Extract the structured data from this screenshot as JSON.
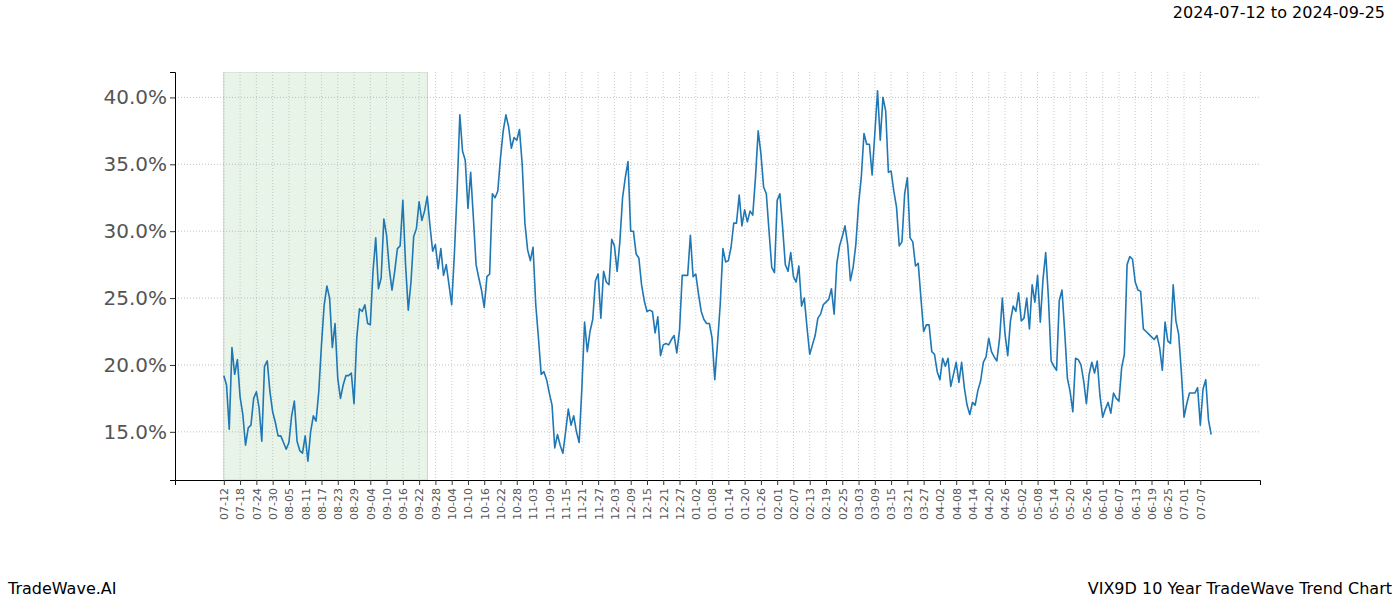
{
  "chart_data": {
    "type": "line",
    "title": "VIX9D 10 Year TradeWave Trend Chart",
    "subtitle": "2024-07-12 to 2024-09-25",
    "annotations": [
      "TradeWave.AI"
    ],
    "color": "#1f77b4",
    "grid": true,
    "highlight": [
      0,
      75
    ],
    "ylim": [
      11.4,
      41.9
    ],
    "yticks": [
      {
        "value": 15,
        "label": "15.0%"
      },
      {
        "value": 20,
        "label": "20.0%"
      },
      {
        "value": 25,
        "label": "25.0%"
      },
      {
        "value": 30,
        "label": "30.0%"
      },
      {
        "value": 35,
        "label": "35.0%"
      },
      {
        "value": 40,
        "label": "40.0%"
      }
    ],
    "categories": [
      "07-12",
      null,
      null,
      null,
      null,
      null,
      "07-18",
      null,
      null,
      null,
      null,
      null,
      "07-24",
      null,
      null,
      null,
      null,
      null,
      "07-30",
      null,
      null,
      null,
      null,
      null,
      "08-05",
      null,
      null,
      null,
      null,
      null,
      "08-11",
      null,
      null,
      null,
      null,
      null,
      "08-17",
      null,
      null,
      null,
      null,
      null,
      "08-23",
      null,
      null,
      null,
      null,
      null,
      "08-29",
      null,
      null,
      null,
      null,
      null,
      "09-04",
      null,
      null,
      null,
      null,
      null,
      "09-10",
      null,
      null,
      null,
      null,
      null,
      "09-16",
      null,
      null,
      null,
      null,
      null,
      "09-22",
      null,
      null,
      null,
      null,
      null,
      "09-28",
      null,
      null,
      null,
      null,
      null,
      "10-04",
      null,
      null,
      null,
      null,
      null,
      "10-10",
      null,
      null,
      null,
      null,
      null,
      "10-16",
      null,
      null,
      null,
      null,
      null,
      "10-22",
      null,
      null,
      null,
      null,
      null,
      "10-28",
      null,
      null,
      null,
      null,
      null,
      "11-03",
      null,
      null,
      null,
      null,
      null,
      "11-09",
      null,
      null,
      null,
      null,
      null,
      "11-15",
      null,
      null,
      null,
      null,
      null,
      "11-21",
      null,
      null,
      null,
      null,
      null,
      "11-27",
      null,
      null,
      null,
      null,
      null,
      "12-03",
      null,
      null,
      null,
      null,
      null,
      "12-09",
      null,
      null,
      null,
      null,
      null,
      "12-15",
      null,
      null,
      null,
      null,
      null,
      "12-21",
      null,
      null,
      null,
      null,
      null,
      "12-27",
      null,
      null,
      null,
      null,
      null,
      "01-02",
      null,
      null,
      null,
      null,
      null,
      "01-08",
      null,
      null,
      null,
      null,
      null,
      "01-14",
      null,
      null,
      null,
      null,
      null,
      "01-20",
      null,
      null,
      null,
      null,
      null,
      "01-26",
      null,
      null,
      null,
      null,
      null,
      "02-01",
      null,
      null,
      null,
      null,
      null,
      "02-07",
      null,
      null,
      null,
      null,
      null,
      "02-13",
      null,
      null,
      null,
      null,
      null,
      "02-19",
      null,
      null,
      null,
      null,
      null,
      "02-25",
      null,
      null,
      null,
      null,
      null,
      "03-03",
      null,
      null,
      null,
      null,
      null,
      "03-09",
      null,
      null,
      null,
      null,
      null,
      "03-15",
      null,
      null,
      null,
      null,
      null,
      "03-21",
      null,
      null,
      null,
      null,
      null,
      "03-27",
      null,
      null,
      null,
      null,
      null,
      "04-02",
      null,
      null,
      null,
      null,
      null,
      "04-08",
      null,
      null,
      null,
      null,
      null,
      "04-14",
      null,
      null,
      null,
      null,
      null,
      "04-20",
      null,
      null,
      null,
      null,
      null,
      "04-26",
      null,
      null,
      null,
      null,
      null,
      "05-02",
      null,
      null,
      null,
      null,
      null,
      "05-08",
      null,
      null,
      null,
      null,
      null,
      "05-14",
      null,
      null,
      null,
      null,
      null,
      "05-20",
      null,
      null,
      null,
      null,
      null,
      "05-26",
      null,
      null,
      null,
      null,
      null,
      "06-01",
      null,
      null,
      null,
      null,
      null,
      "06-07",
      null,
      null,
      null,
      null,
      null,
      "06-13",
      null,
      null,
      null,
      null,
      null,
      "06-19",
      null,
      null,
      null,
      null,
      null,
      "06-25",
      null,
      null,
      null,
      null,
      null,
      "07-01",
      null,
      null,
      null,
      null,
      null,
      "07-07",
      null,
      null,
      null,
      null
    ],
    "values": [
      19.2,
      18.5,
      15.2,
      21.3,
      19.3,
      20.4,
      17.6,
      16.3,
      14.0,
      15.3,
      15.5,
      17.5,
      18.0,
      16.8,
      14.3,
      19.9,
      20.3,
      18.0,
      16.5,
      15.7,
      14.7,
      14.7,
      14.2,
      13.7,
      14.2,
      16.2,
      17.3,
      14.3,
      13.6,
      13.4,
      14.7,
      12.8,
      15.0,
      16.2,
      15.8,
      18.0,
      21.5,
      24.5,
      25.9,
      25.0,
      21.3,
      23.1,
      19.0,
      17.5,
      18.5,
      19.2,
      19.2,
      19.4,
      17.1,
      22.0,
      24.2,
      24.0,
      24.5,
      23.1,
      23.0,
      27.0,
      29.5,
      25.7,
      26.5,
      30.9,
      29.7,
      27.2,
      25.6,
      27.0,
      28.7,
      28.9,
      32.3,
      27.5,
      24.1,
      26.2,
      29.6,
      30.2,
      32.2,
      30.8,
      31.5,
      32.6,
      30.4,
      28.5,
      29.0,
      27.2,
      28.7,
      26.7,
      27.5,
      26.0,
      24.5,
      28.3,
      33.0,
      38.7,
      36.0,
      35.3,
      31.7,
      34.4,
      31.0,
      27.5,
      26.5,
      25.6,
      24.3,
      26.6,
      26.8,
      32.8,
      32.5,
      33.0,
      35.5,
      37.5,
      38.7,
      37.8,
      36.2,
      37.0,
      36.8,
      37.6,
      35.0,
      30.6,
      28.6,
      27.8,
      28.8,
      24.5,
      22.0,
      19.3,
      19.5,
      18.9,
      17.9,
      17.0,
      13.8,
      14.8,
      14.0,
      13.4,
      15.0,
      16.7,
      15.5,
      16.2,
      15.0,
      14.2,
      18.3,
      23.2,
      21.0,
      22.5,
      23.4,
      26.3,
      26.8,
      23.5,
      27.0,
      26.2,
      26.0,
      29.4,
      28.9,
      27.0,
      29.2,
      32.5,
      34.0,
      35.2,
      30.0,
      30.0,
      28.3,
      28.0,
      26.0,
      24.8,
      24.0,
      24.1,
      24.0,
      22.4,
      23.6,
      20.7,
      21.5,
      21.6,
      21.5,
      21.9,
      22.2,
      20.9,
      22.6,
      26.7,
      26.7,
      26.7,
      29.7,
      26.6,
      26.8,
      25.3,
      24.0,
      23.4,
      23.1,
      23.1,
      22.0,
      18.9,
      21.6,
      24.5,
      28.7,
      27.7,
      27.8,
      28.8,
      30.6,
      30.6,
      32.7,
      30.4,
      31.6,
      30.7,
      31.5,
      31.2,
      34.0,
      37.5,
      35.8,
      33.3,
      32.8,
      30.0,
      27.3,
      26.9,
      32.3,
      32.8,
      30.3,
      27.5,
      27.0,
      28.4,
      26.6,
      26.2,
      27.4,
      24.4,
      25.0,
      22.8,
      20.8,
      21.5,
      22.2,
      23.5,
      23.8,
      24.5,
      24.7,
      24.9,
      25.7,
      23.8,
      27.6,
      28.9,
      29.6,
      30.4,
      29.0,
      26.3,
      27.3,
      29.0,
      32.0,
      34.0,
      37.3,
      36.5,
      36.5,
      34.2,
      37.3,
      40.5,
      36.8,
      40.0,
      39.0,
      34.4,
      34.5,
      33.0,
      31.8,
      28.9,
      29.2,
      32.8,
      34.0,
      29.5,
      29.2,
      27.4,
      27.6,
      25.0,
      22.5,
      23.0,
      23.0,
      21.0,
      20.8,
      19.5,
      18.9,
      20.5,
      19.9,
      20.5,
      18.4,
      19.3,
      20.2,
      18.7,
      20.2,
      18.3,
      17.0,
      16.3,
      17.2,
      17.0,
      18.1,
      18.8,
      20.2,
      20.6,
      22.0,
      21.0,
      20.6,
      20.3,
      22.0,
      25.0,
      22.3,
      20.7,
      23.3,
      24.4,
      24.0,
      25.4,
      23.3,
      23.5,
      25.0,
      22.7,
      26.0,
      24.7,
      26.7,
      23.2,
      26.4,
      28.4,
      25.0,
      20.3,
      19.9,
      19.6,
      24.8,
      25.6,
      22.5,
      19.0,
      18.0,
      16.5,
      20.5,
      20.4,
      20.0,
      18.8,
      17.1,
      19.3,
      20.2,
      19.4,
      20.3,
      17.7,
      16.1,
      16.7,
      17.2,
      16.4,
      17.9,
      17.5,
      17.3,
      19.8,
      20.8,
      27.5,
      28.1,
      27.9,
      26.2,
      25.6,
      25.5,
      22.7,
      22.5,
      22.3,
      22.1,
      21.9,
      22.2,
      21.3,
      19.6,
      23.2,
      21.8,
      21.6,
      26.0,
      23.3,
      22.3,
      19.5,
      16.1,
      17.1,
      17.9,
      17.9,
      17.9,
      18.3,
      15.5,
      18.2,
      18.9,
      15.9,
      14.8
    ]
  }
}
